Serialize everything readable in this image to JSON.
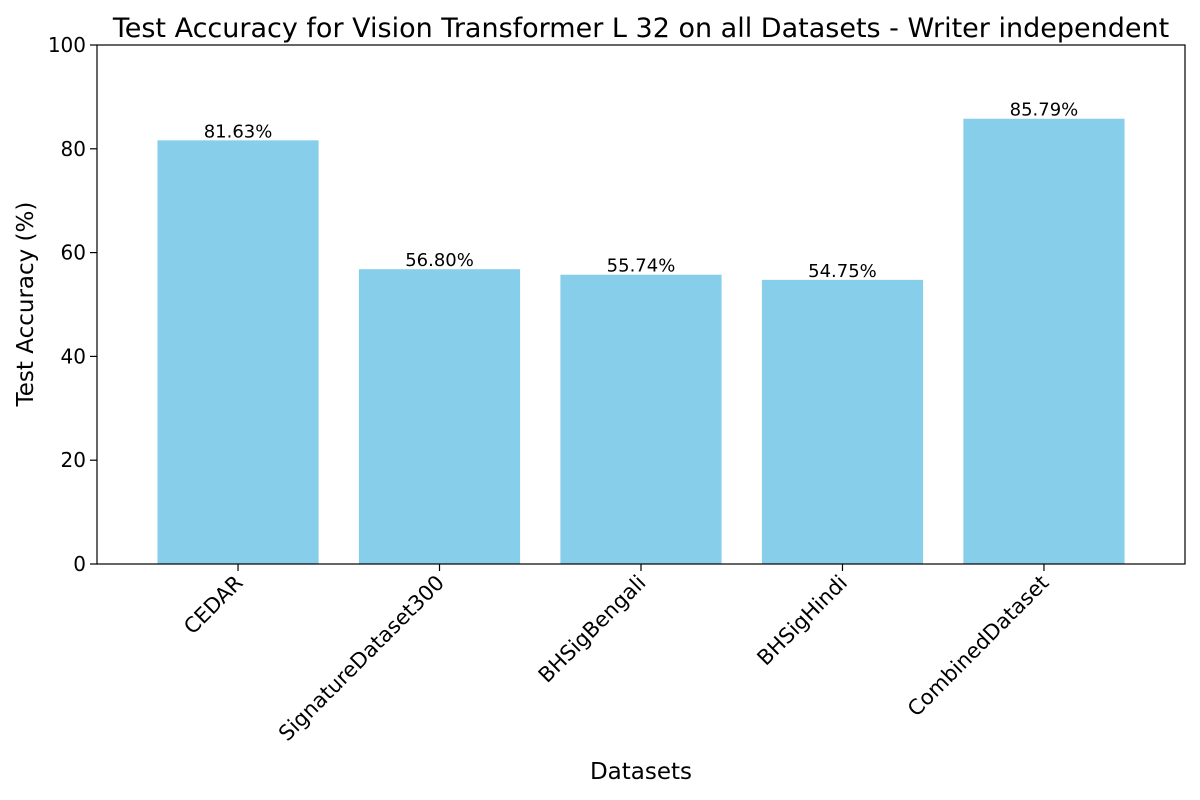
{
  "chart_data": {
    "type": "bar",
    "title": "Test Accuracy for Vision Transformer L 32 on all Datasets - Writer independent",
    "xlabel": "Datasets",
    "ylabel": "Test Accuracy (%)",
    "ylim": [
      0,
      100
    ],
    "yticks": [
      0,
      20,
      40,
      60,
      80,
      100
    ],
    "categories": [
      "CEDAR",
      "SignatureDataset300",
      "BHSigBengali",
      "BHSigHindi",
      "CombinedDataset"
    ],
    "values": [
      81.63,
      56.8,
      55.74,
      54.75,
      85.79
    ],
    "data_labels": [
      "81.63%",
      "56.80%",
      "55.74%",
      "54.75%",
      "85.79%"
    ],
    "bar_color": "#87CEEB",
    "grid": false,
    "legend": null
  }
}
